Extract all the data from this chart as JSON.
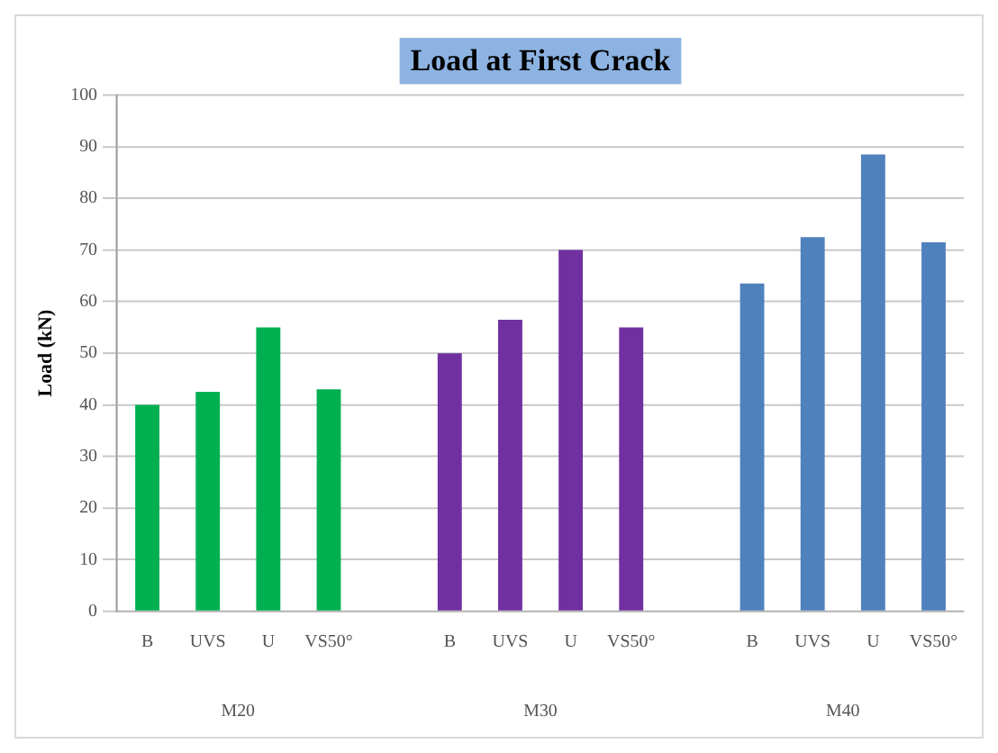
{
  "chart_data": {
    "type": "bar",
    "title": "Load at First Crack",
    "ylabel": "Load (kN)",
    "categories": [
      "B",
      "UVS",
      "U",
      "VS50°",
      null,
      "B",
      "UVS",
      "U",
      "VS50°",
      null,
      "B",
      "UVS",
      "U",
      "VS50°"
    ],
    "values": [
      40,
      42.5,
      55,
      43,
      null,
      50,
      56.5,
      70,
      55,
      null,
      63.5,
      72.5,
      88.5,
      71.5
    ],
    "colors": [
      "#00b050",
      "#00b050",
      "#00b050",
      "#00b050",
      "#ffffff",
      "#7030a0",
      "#7030a0",
      "#7030a0",
      "#7030a0",
      "#ffffff",
      "#4f81bd",
      "#4f81bd",
      "#4f81bd",
      "#4f81bd"
    ],
    "ylim": [
      0,
      100
    ],
    "yticks": [
      0,
      10,
      20,
      30,
      40,
      50,
      60,
      70,
      80,
      90,
      100
    ],
    "grid": "y",
    "legend": false,
    "annotations": [
      "M20",
      "M30",
      "M40"
    ]
  }
}
